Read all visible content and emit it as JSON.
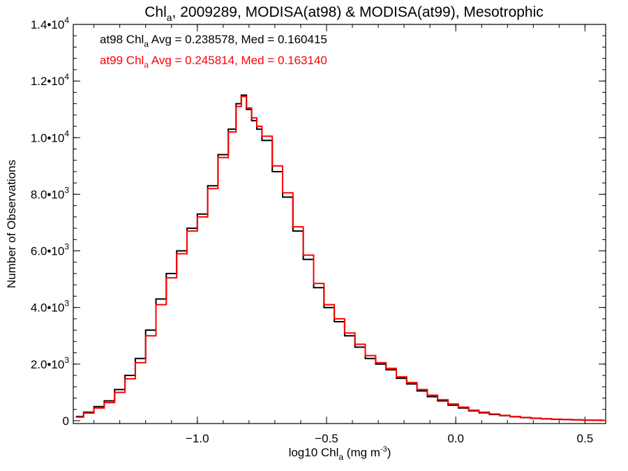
{
  "chart_data": {
    "type": "line",
    "step": true,
    "title": {
      "prefix": "Chl",
      "sub": "a",
      "rest": ", 2009289, MODISA(at98) & MODISA(at99), Mesotrophic"
    },
    "xlabel": {
      "prefix": "log10 Chl",
      "sub": "a",
      "mid": " (mg m",
      "sup": "-3",
      "end": ")"
    },
    "ylabel": "Number of Observations",
    "xlim": [
      -1.48,
      0.58
    ],
    "ylim": [
      -100,
      14000
    ],
    "x_ticks": [
      {
        "value": -1.0,
        "label": "−1.0"
      },
      {
        "value": -0.5,
        "label": "−0.5"
      },
      {
        "value": 0.0,
        "label": "0.0"
      },
      {
        "value": 0.5,
        "label": "0.5"
      }
    ],
    "x_minor_step": 0.1,
    "y_ticks": [
      {
        "value": 0,
        "mant": "0",
        "exp": ""
      },
      {
        "value": 2000,
        "mant": "2.0•10",
        "exp": "3"
      },
      {
        "value": 4000,
        "mant": "4.0•10",
        "exp": "3"
      },
      {
        "value": 6000,
        "mant": "6.0•10",
        "exp": "3"
      },
      {
        "value": 8000,
        "mant": "8.0•10",
        "exp": "3"
      },
      {
        "value": 10000,
        "mant": "1.0•10",
        "exp": "4"
      },
      {
        "value": 12000,
        "mant": "1.2•10",
        "exp": "4"
      },
      {
        "value": 14000,
        "mant": "1.4•10",
        "exp": "4"
      }
    ],
    "y_minor_step": 400,
    "grid": false,
    "legend_position": "top-left",
    "legend": [
      {
        "prefix": "at98 Chl",
        "sub": "a",
        "rest": " Avg = 0.238578, Med = 0.160415",
        "color": "#000000"
      },
      {
        "prefix": "at99 Chl",
        "sub": "a",
        "rest": " Avg = 0.245814, Med = 0.163140",
        "color": "#ff0000"
      }
    ],
    "series": [
      {
        "color": "#000000",
        "x": [
          -1.47,
          -1.44,
          -1.4,
          -1.36,
          -1.32,
          -1.28,
          -1.24,
          -1.2,
          -1.16,
          -1.12,
          -1.08,
          -1.04,
          -1.0,
          -0.96,
          -0.92,
          -0.88,
          -0.85,
          -0.83,
          -0.81,
          -0.79,
          -0.77,
          -0.75,
          -0.71,
          -0.67,
          -0.63,
          -0.59,
          -0.55,
          -0.51,
          -0.47,
          -0.43,
          -0.39,
          -0.35,
          -0.31,
          -0.27,
          -0.23,
          -0.19,
          -0.15,
          -0.11,
          -0.07,
          -0.03,
          0.01,
          0.05,
          0.09,
          0.13,
          0.17,
          0.21,
          0.25,
          0.29,
          0.33,
          0.37,
          0.41,
          0.45,
          0.49,
          0.53,
          0.57
        ],
        "values": [
          150,
          300,
          500,
          700,
          1100,
          1600,
          2200,
          3200,
          4300,
          5200,
          6000,
          6800,
          7300,
          8300,
          9400,
          10300,
          11200,
          11500,
          11000,
          10600,
          10300,
          9900,
          8800,
          7900,
          6700,
          5700,
          4700,
          4000,
          3500,
          3000,
          2600,
          2200,
          2000,
          1800,
          1500,
          1300,
          1050,
          850,
          700,
          550,
          450,
          350,
          280,
          220,
          180,
          140,
          110,
          85,
          65,
          50,
          40,
          30,
          20,
          15,
          10
        ]
      },
      {
        "color": "#ff0000",
        "x": [
          -1.47,
          -1.44,
          -1.4,
          -1.36,
          -1.32,
          -1.28,
          -1.24,
          -1.2,
          -1.16,
          -1.12,
          -1.08,
          -1.04,
          -1.0,
          -0.96,
          -0.92,
          -0.88,
          -0.85,
          -0.83,
          -0.81,
          -0.79,
          -0.77,
          -0.75,
          -0.71,
          -0.67,
          -0.63,
          -0.59,
          -0.55,
          -0.51,
          -0.47,
          -0.43,
          -0.39,
          -0.35,
          -0.31,
          -0.27,
          -0.23,
          -0.19,
          -0.15,
          -0.11,
          -0.07,
          -0.03,
          0.01,
          0.05,
          0.09,
          0.13,
          0.17,
          0.21,
          0.25,
          0.29,
          0.33,
          0.37,
          0.41,
          0.45,
          0.49,
          0.53,
          0.57
        ],
        "values": [
          130,
          270,
          450,
          640,
          1000,
          1480,
          2050,
          3000,
          4100,
          5050,
          5900,
          6700,
          7200,
          8200,
          9300,
          10200,
          11100,
          11450,
          11050,
          10700,
          10400,
          10050,
          9000,
          8050,
          6850,
          5850,
          4850,
          4100,
          3600,
          3100,
          2700,
          2300,
          2050,
          1850,
          1550,
          1350,
          1100,
          900,
          740,
          590,
          480,
          370,
          300,
          235,
          190,
          150,
          115,
          90,
          70,
          55,
          42,
          32,
          22,
          16,
          10
        ]
      }
    ]
  }
}
